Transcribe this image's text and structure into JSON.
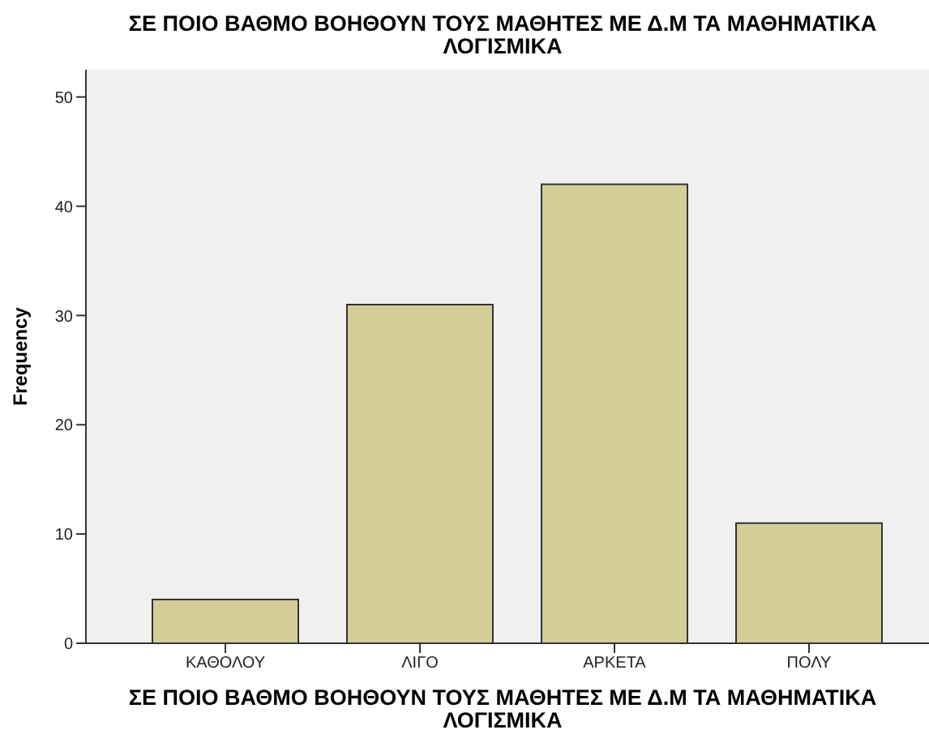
{
  "chart_data": {
    "type": "bar",
    "title": "ΣΕ ΠΟΙΟ ΒΑΘΜΟ ΒΟΗΘΟΥΝ ΤΟΥΣ ΜΑΘΗΤΕΣ ΜΕ Δ.Μ  ΤΑ ΜΑΘΗΜΑΤΙΚΑ ΛΟΓΙΣΜΙΚΑ",
    "xlabel": "ΣΕ ΠΟΙΟ ΒΑΘΜΟ ΒΟΗΘΟΥΝ ΤΟΥΣ ΜΑΘΗΤΕΣ ΜΕ Δ.Μ  ΤΑ ΜΑΘΗΜΑΤΙΚΑ ΛΟΓΙΣΜΙΚΑ",
    "ylabel": "Frequency",
    "categories": [
      "ΚΑΘΟΛΟΥ",
      "ΛΙΓΟ",
      "ΑΡΚΕΤΑ",
      "ΠΟΛΥ"
    ],
    "values": [
      4,
      31,
      42,
      11
    ],
    "color": "#d3ce97",
    "ylim": [
      0,
      52.5
    ],
    "yticks": [
      0,
      10,
      20,
      30,
      40,
      50
    ],
    "grid": false,
    "legend": false
  }
}
